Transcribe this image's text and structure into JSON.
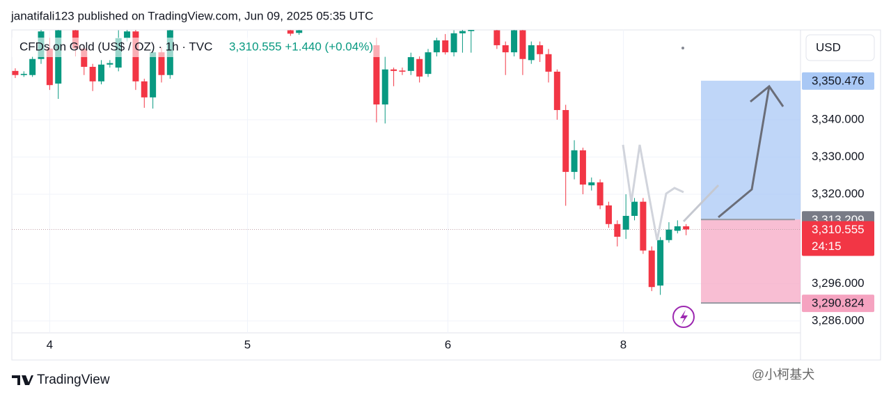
{
  "header": {
    "byline": "janatifali123 published on TradingView.com, Jun 09, 2025 05:35 UTC"
  },
  "chart_data": {
    "type": "candlestick",
    "title": "CFDs on Gold (US$ / OZ) · 1h · TVC",
    "price_summary": "3,310.555 +1.440 (+0.04%)",
    "currency": "USD",
    "up_color": "#089981",
    "down_color": "#f23645",
    "x": [
      0,
      1,
      2,
      3,
      4,
      5,
      7,
      8,
      9,
      10,
      11,
      12,
      13,
      14,
      15,
      16,
      17,
      18,
      32,
      33,
      42,
      43,
      44,
      45,
      46,
      47,
      48,
      49,
      50,
      51,
      52,
      53,
      56,
      57,
      58,
      59,
      60,
      61,
      62,
      63,
      64,
      65,
      66,
      67,
      68,
      69,
      70,
      71,
      72,
      73,
      74,
      75,
      76,
      77,
      78
    ],
    "open": [
      3353.1,
      3352.0,
      3352.0,
      3356.3,
      3359.1,
      3349.7,
      3364.0,
      3359.1,
      3354.2,
      3350.3,
      3354.8,
      3354.0,
      3361.9,
      3363.7,
      3350.3,
      3346.0,
      3358.1,
      3352.0,
      3364.0,
      3363.3,
      3360.0,
      3344.1,
      3353.5,
      3353.2,
      3353.1,
      3356.3,
      3352.3,
      3358.1,
      3361.3,
      3358.1,
      3363.2,
      3363.8,
      3364.0,
      3360.0,
      3358.1,
      3364.0,
      3356.0,
      3360.0,
      3357.6,
      3352.9,
      3342.6,
      3326.0,
      3331.8,
      3322.4,
      3323.2,
      3317.0,
      3312.0,
      3310.5,
      3314.2,
      3318.0,
      3304.9,
      3295.5,
      3307.7,
      3310.2,
      3311.4
    ],
    "high": [
      3353.8,
      3353.0,
      3357.0,
      3365.5,
      3362.0,
      3366.0,
      3366.0,
      3360.0,
      3355.0,
      3356.0,
      3356.0,
      3364.0,
      3365.0,
      3365.0,
      3351.0,
      3359.0,
      3359.5,
      3366.0,
      3366.0,
      3366.0,
      3362.0,
      3357.0,
      3354.0,
      3354.0,
      3358.0,
      3357.0,
      3359.0,
      3362.0,
      3363.0,
      3364.0,
      3365.0,
      3365.0,
      3366.0,
      3361.0,
      3366.0,
      3366.0,
      3361.0,
      3361.0,
      3359.0,
      3353.5,
      3344.0,
      3334.5,
      3332.5,
      3324.5,
      3324.0,
      3318.0,
      3313.0,
      3320.0,
      3319.0,
      3319.0,
      3306.0,
      3308.5,
      3312.5,
      3313.0,
      3312.0
    ],
    "low": [
      3351.2,
      3351.5,
      3351.5,
      3355.0,
      3348.0,
      3345.6,
      3357.0,
      3352.0,
      3347.7,
      3349.5,
      3354.0,
      3353.0,
      3361.0,
      3348.0,
      3343.2,
      3343.0,
      3350.0,
      3351.0,
      3362.5,
      3362.8,
      3339.3,
      3339.0,
      3349.0,
      3352.0,
      3352.0,
      3350.0,
      3351.5,
      3357.0,
      3357.5,
      3357.0,
      3358.0,
      3358.0,
      3359.0,
      3352.0,
      3357.0,
      3352.0,
      3355.0,
      3355.5,
      3350.0,
      3340.0,
      3316.9,
      3324.0,
      3320.0,
      3321.0,
      3316.0,
      3311.0,
      3306.0,
      3308.0,
      3313.0,
      3304.0,
      3294.0,
      3293.0,
      3307.0,
      3309.5,
      3309.0
    ],
    "close": [
      3352.0,
      3352.3,
      3356.3,
      3363.7,
      3349.3,
      3364.0,
      3359.1,
      3354.2,
      3350.3,
      3354.8,
      3355.2,
      3361.9,
      3363.7,
      3350.3,
      3346.0,
      3358.1,
      3352.0,
      3364.0,
      3363.1,
      3364.0,
      3344.1,
      3353.5,
      3353.1,
      3352.9,
      3356.8,
      3351.6,
      3358.1,
      3361.3,
      3358.1,
      3363.2,
      3363.8,
      3364.1,
      3360.0,
      3358.1,
      3364.0,
      3356.3,
      3360.0,
      3357.6,
      3352.9,
      3342.6,
      3326.0,
      3331.8,
      3322.6,
      3323.2,
      3317.0,
      3312.0,
      3308.6,
      3314.2,
      3318.0,
      3304.9,
      3295.1,
      3307.7,
      3310.5,
      3311.4,
      3310.555
    ],
    "xlim": [
      -0.4,
      91.3
    ],
    "xticks": [
      {
        "value": 4,
        "label": "4"
      },
      {
        "value": 27,
        "label": "5"
      },
      {
        "value": 50.3,
        "label": "6"
      },
      {
        "value": 70.7,
        "label": "8"
      }
    ],
    "ylim": [
      3284.3,
      3364.1
    ],
    "yticks": [
      {
        "value": 3340,
        "label": "3,340.000"
      },
      {
        "value": 3330,
        "label": "3,330.000"
      },
      {
        "value": 3320,
        "label": "3,320.000"
      },
      {
        "value": 3296,
        "label": "3,296.000"
      },
      {
        "value": 3286,
        "label": "3,286.000"
      }
    ],
    "grid": true,
    "price_labels": [
      {
        "value": 3350.476,
        "label": "3,350.476",
        "color": "#a9c8f5",
        "text_color": "#131722"
      },
      {
        "value": 3313.209,
        "label": "3,313.209",
        "color": "#787b86",
        "text_color": "#ffffff"
      },
      {
        "value": 3310.555,
        "label": "3,310.555",
        "color": "#f23645",
        "text_color": "#ffffff"
      },
      {
        "value": 3290.824,
        "label": "3,290.824",
        "color": "#f5a3c0",
        "text_color": "#131722"
      }
    ],
    "countdown": "24:15"
  },
  "footer": {
    "brand": "TradingView",
    "watermark": "@小柯基犬"
  }
}
